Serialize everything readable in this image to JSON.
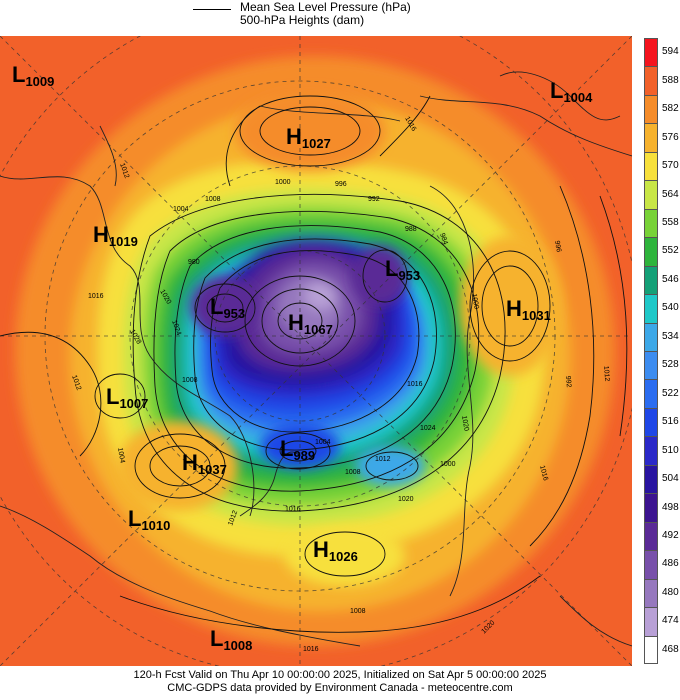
{
  "legend": {
    "line1": "Mean Sea Level Pressure (hPa)",
    "line2": "500-hPa Heights (dam)"
  },
  "color_scale": [
    {
      "value": "594",
      "color": "#f4141e"
    },
    {
      "value": "588",
      "color": "#f2612a"
    },
    {
      "value": "582",
      "color": "#f58c2a"
    },
    {
      "value": "576",
      "color": "#f6b22e"
    },
    {
      "value": "570",
      "color": "#f7e03c"
    },
    {
      "value": "564",
      "color": "#c8e646"
    },
    {
      "value": "558",
      "color": "#78d238"
    },
    {
      "value": "552",
      "color": "#2eb43c"
    },
    {
      "value": "546",
      "color": "#14a077"
    },
    {
      "value": "540",
      "color": "#1ec8c8"
    },
    {
      "value": "534",
      "color": "#3ca8e8"
    },
    {
      "value": "528",
      "color": "#3c8cf0"
    },
    {
      "value": "522",
      "color": "#2a6cf0"
    },
    {
      "value": "516",
      "color": "#1e46e6"
    },
    {
      "value": "510",
      "color": "#2a28c8"
    },
    {
      "value": "504",
      "color": "#2814a0"
    },
    {
      "value": "498",
      "color": "#3c1490"
    },
    {
      "value": "492",
      "color": "#5a2a96"
    },
    {
      "value": "486",
      "color": "#7850aa"
    },
    {
      "value": "480",
      "color": "#9678be"
    },
    {
      "value": "474",
      "color": "#b8a0d6"
    },
    {
      "value": "468",
      "color": "#ffffff"
    }
  ],
  "pressure_centers": [
    {
      "letter": "L",
      "value": "1009"
    },
    {
      "letter": "H",
      "value": "1027"
    },
    {
      "letter": "L",
      "value": "1004"
    },
    {
      "letter": "H",
      "value": "1019"
    },
    {
      "letter": "L",
      "value": "953"
    },
    {
      "letter": "H",
      "value": "1067"
    },
    {
      "letter": "L",
      "value": "953"
    },
    {
      "letter": "H",
      "value": "1031"
    },
    {
      "letter": "L",
      "value": "1007"
    },
    {
      "letter": "H",
      "value": "1037"
    },
    {
      "letter": "L",
      "value": "989"
    },
    {
      "letter": "L",
      "value": "1010"
    },
    {
      "letter": "H",
      "value": "1026"
    },
    {
      "letter": "L",
      "value": "1008"
    }
  ],
  "isobar_labels": [
    "1016",
    "1012",
    "1008",
    "1004",
    "1000",
    "996",
    "992",
    "988",
    "984",
    "980",
    "1020",
    "1024",
    "1028",
    "1016",
    "1012",
    "1008",
    "1004",
    "1000",
    "996",
    "992",
    "1012",
    "1016",
    "1020",
    "1024",
    "1016",
    "1012",
    "1008",
    "1004",
    "1000",
    "1020",
    "1016",
    "1012",
    "1008",
    "1016",
    "1020"
  ],
  "footer": {
    "line1": "120-h Fcst Valid on Thu Apr 10 00:00:00 2025, Initialized on Sat Apr  5 00:00:00 2025",
    "line2": "CMC-GDPS data provided by Environment Canada - meteocentre.com"
  }
}
